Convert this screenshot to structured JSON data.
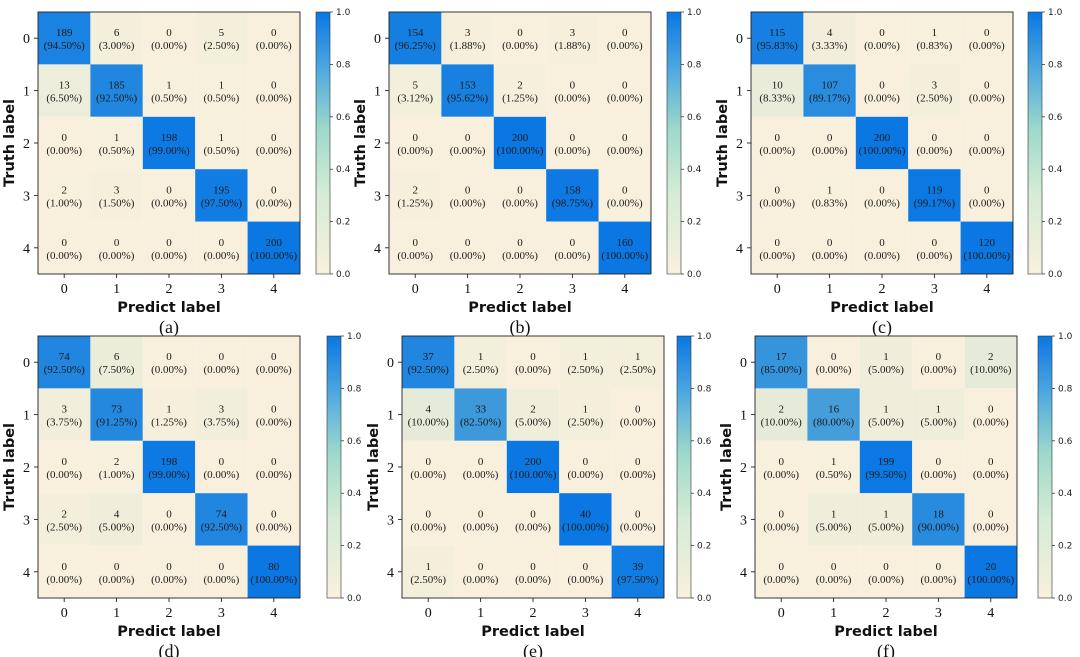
{
  "figure": {
    "colors": {
      "low": "#f8f0dc",
      "mid": "#9ed9cb",
      "high": "#0a77e3",
      "grid": "#222222"
    },
    "colorbar_ticks": [
      "0.0",
      "0.2",
      "0.4",
      "0.6",
      "0.8",
      "1.0"
    ]
  },
  "chart_data": [
    {
      "type": "heatmap",
      "panel_label": "(a)",
      "xlabel": "Predict label",
      "ylabel": "Truth label",
      "x_ticks": [
        "0",
        "1",
        "2",
        "3",
        "4"
      ],
      "y_ticks": [
        "0",
        "1",
        "2",
        "3",
        "4"
      ],
      "color_range": [
        0,
        1
      ],
      "counts": [
        [
          189,
          6,
          0,
          5,
          0
        ],
        [
          13,
          185,
          1,
          1,
          0
        ],
        [
          0,
          1,
          198,
          1,
          0
        ],
        [
          2,
          3,
          0,
          195,
          0
        ],
        [
          0,
          0,
          0,
          0,
          200
        ]
      ],
      "percents": [
        [
          "94.50%",
          "3.00%",
          "0.00%",
          "2.50%",
          "0.00%"
        ],
        [
          "6.50%",
          "92.50%",
          "0.50%",
          "0.50%",
          "0.00%"
        ],
        [
          "0.00%",
          "0.50%",
          "99.00%",
          "0.50%",
          "0.00%"
        ],
        [
          "1.00%",
          "1.50%",
          "0.00%",
          "97.50%",
          "0.00%"
        ],
        [
          "0.00%",
          "0.00%",
          "0.00%",
          "0.00%",
          "100.00%"
        ]
      ]
    },
    {
      "type": "heatmap",
      "panel_label": "(b)",
      "xlabel": "Predict label",
      "ylabel": "Truth label",
      "x_ticks": [
        "0",
        "1",
        "2",
        "3",
        "4"
      ],
      "y_ticks": [
        "0",
        "1",
        "2",
        "3",
        "4"
      ],
      "color_range": [
        0,
        1
      ],
      "counts": [
        [
          154,
          3,
          0,
          3,
          0
        ],
        [
          5,
          153,
          2,
          0,
          0
        ],
        [
          0,
          0,
          200,
          0,
          0
        ],
        [
          2,
          0,
          0,
          158,
          0
        ],
        [
          0,
          0,
          0,
          0,
          160
        ]
      ],
      "percents": [
        [
          "96.25%",
          "1.88%",
          "0.00%",
          "1.88%",
          "0.00%"
        ],
        [
          "3.12%",
          "95.62%",
          "1.25%",
          "0.00%",
          "0.00%"
        ],
        [
          "0.00%",
          "0.00%",
          "100.00%",
          "0.00%",
          "0.00%"
        ],
        [
          "1.25%",
          "0.00%",
          "0.00%",
          "98.75%",
          "0.00%"
        ],
        [
          "0.00%",
          "0.00%",
          "0.00%",
          "0.00%",
          "100.00%"
        ]
      ]
    },
    {
      "type": "heatmap",
      "panel_label": "(c)",
      "xlabel": "Predict label",
      "ylabel": "Truth label",
      "x_ticks": [
        "0",
        "1",
        "2",
        "3",
        "4"
      ],
      "y_ticks": [
        "0",
        "1",
        "2",
        "3",
        "4"
      ],
      "color_range": [
        0,
        1
      ],
      "counts": [
        [
          115,
          4,
          0,
          1,
          0
        ],
        [
          10,
          107,
          0,
          3,
          0
        ],
        [
          0,
          0,
          200,
          0,
          0
        ],
        [
          0,
          1,
          0,
          119,
          0
        ],
        [
          0,
          0,
          0,
          0,
          120
        ]
      ],
      "percents": [
        [
          "95.83%",
          "3.33%",
          "0.00%",
          "0.83%",
          "0.00%"
        ],
        [
          "8.33%",
          "89.17%",
          "0.00%",
          "2.50%",
          "0.00%"
        ],
        [
          "0.00%",
          "0.00%",
          "100.00%",
          "0.00%",
          "0.00%"
        ],
        [
          "0.00%",
          "0.83%",
          "0.00%",
          "99.17%",
          "0.00%"
        ],
        [
          "0.00%",
          "0.00%",
          "0.00%",
          "0.00%",
          "100.00%"
        ]
      ]
    },
    {
      "type": "heatmap",
      "panel_label": "(d)",
      "xlabel": "Predict label",
      "ylabel": "Truth label",
      "x_ticks": [
        "0",
        "1",
        "2",
        "3",
        "4"
      ],
      "y_ticks": [
        "0",
        "1",
        "2",
        "3",
        "4"
      ],
      "color_range": [
        0,
        1
      ],
      "counts": [
        [
          74,
          6,
          0,
          0,
          0
        ],
        [
          3,
          73,
          1,
          3,
          0
        ],
        [
          0,
          2,
          198,
          0,
          0
        ],
        [
          2,
          4,
          0,
          74,
          0
        ],
        [
          0,
          0,
          0,
          0,
          80
        ]
      ],
      "percents": [
        [
          "92.50%",
          "7.50%",
          "0.00%",
          "0.00%",
          "0.00%"
        ],
        [
          "3.75%",
          "91.25%",
          "1.25%",
          "3.75%",
          "0.00%"
        ],
        [
          "0.00%",
          "1.00%",
          "99.00%",
          "0.00%",
          "0.00%"
        ],
        [
          "2.50%",
          "5.00%",
          "0.00%",
          "92.50%",
          "0.00%"
        ],
        [
          "0.00%",
          "0.00%",
          "0.00%",
          "0.00%",
          "100.00%"
        ]
      ]
    },
    {
      "type": "heatmap",
      "panel_label": "(e)",
      "xlabel": "Predict label",
      "ylabel": "Truth label",
      "x_ticks": [
        "0",
        "1",
        "2",
        "3",
        "4"
      ],
      "y_ticks": [
        "0",
        "1",
        "2",
        "3",
        "4"
      ],
      "color_range": [
        0,
        1
      ],
      "counts": [
        [
          37,
          1,
          0,
          1,
          1
        ],
        [
          4,
          33,
          2,
          1,
          0
        ],
        [
          0,
          0,
          200,
          0,
          0
        ],
        [
          0,
          0,
          0,
          40,
          0
        ],
        [
          1,
          0,
          0,
          0,
          39
        ]
      ],
      "percents": [
        [
          "92.50%",
          "2.50%",
          "0.00%",
          "2.50%",
          "2.50%"
        ],
        [
          "10.00%",
          "82.50%",
          "5.00%",
          "2.50%",
          "0.00%"
        ],
        [
          "0.00%",
          "0.00%",
          "100.00%",
          "0.00%",
          "0.00%"
        ],
        [
          "0.00%",
          "0.00%",
          "0.00%",
          "100.00%",
          "0.00%"
        ],
        [
          "2.50%",
          "0.00%",
          "0.00%",
          "0.00%",
          "97.50%"
        ]
      ]
    },
    {
      "type": "heatmap",
      "panel_label": "(f)",
      "xlabel": "Predict label",
      "ylabel": "Truth label",
      "x_ticks": [
        "0",
        "1",
        "2",
        "3",
        "4"
      ],
      "y_ticks": [
        "0",
        "1",
        "2",
        "3",
        "4"
      ],
      "color_range": [
        0,
        1
      ],
      "counts": [
        [
          17,
          0,
          1,
          0,
          2
        ],
        [
          2,
          16,
          1,
          1,
          0
        ],
        [
          0,
          1,
          199,
          0,
          0
        ],
        [
          0,
          1,
          1,
          18,
          0
        ],
        [
          0,
          0,
          0,
          0,
          20
        ]
      ],
      "percents": [
        [
          "85.00%",
          "0.00%",
          "5.00%",
          "0.00%",
          "10.00%"
        ],
        [
          "10.00%",
          "80.00%",
          "5.00%",
          "5.00%",
          "0.00%"
        ],
        [
          "0.00%",
          "0.50%",
          "99.50%",
          "0.00%",
          "0.00%"
        ],
        [
          "0.00%",
          "5.00%",
          "5.00%",
          "90.00%",
          "0.00%"
        ],
        [
          "0.00%",
          "0.00%",
          "0.00%",
          "0.00%",
          "100.00%"
        ]
      ]
    }
  ]
}
